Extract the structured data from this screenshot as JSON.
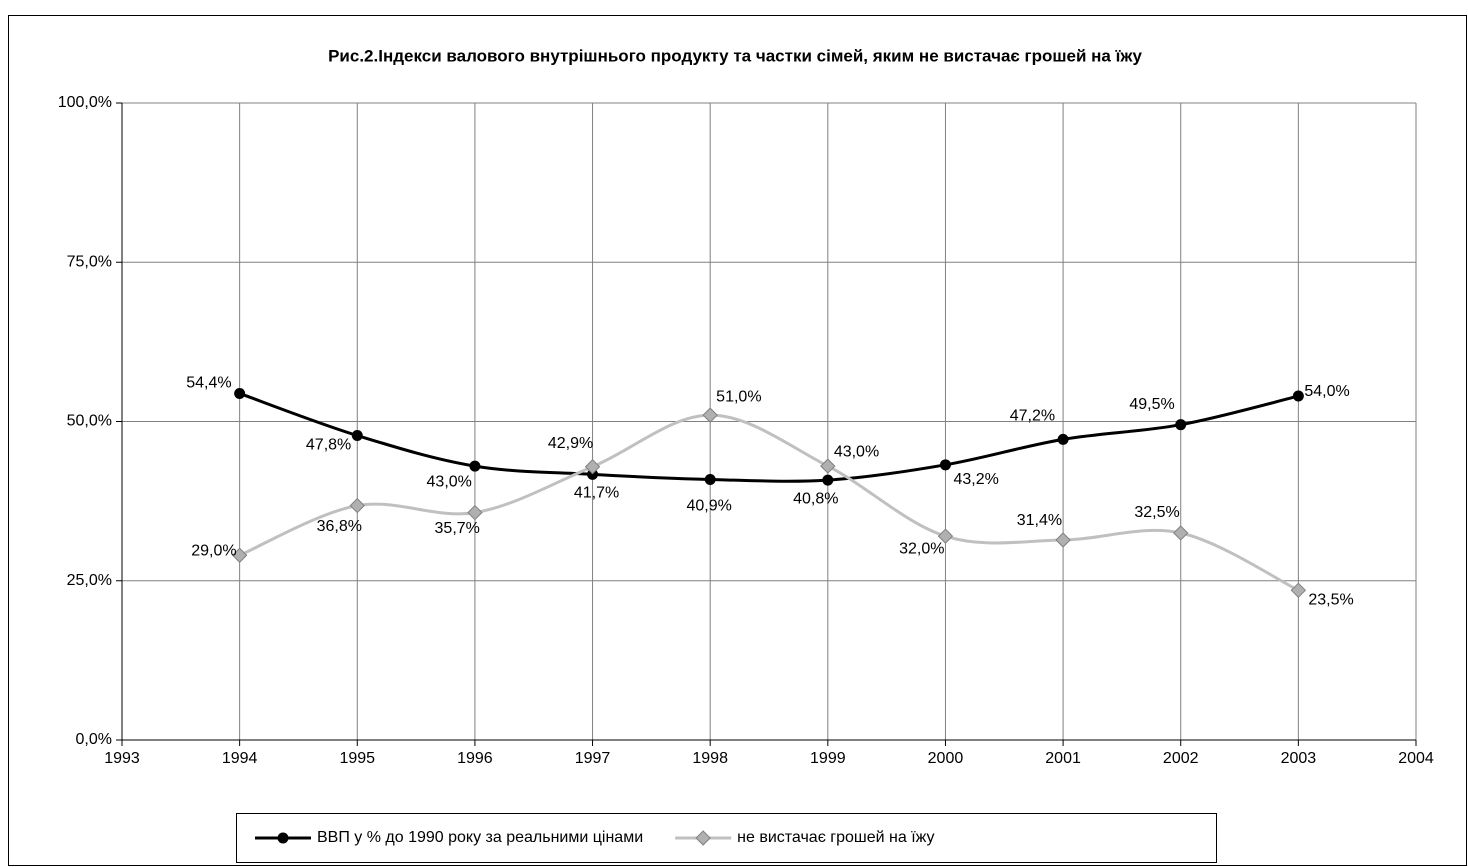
{
  "chart_data": {
    "type": "line",
    "title": "Рис.2.Індекси валового внутрішнього продукту та частки сімей, яким не вистачає грошей на їжу",
    "x": [
      1994,
      1995,
      1996,
      1997,
      1998,
      1999,
      2000,
      2001,
      2002,
      2003
    ],
    "series": [
      {
        "name": "ВВП у % до 1990 року за реальними цінами",
        "color": "#000000",
        "marker": "circle",
        "values": [
          54.4,
          47.8,
          43.0,
          41.7,
          40.9,
          40.8,
          43.2,
          47.2,
          49.5,
          54.0
        ],
        "value_labels": [
          "54,4%",
          "47,8%",
          "43,0%",
          "41,7%",
          "40,9%",
          "40,8%",
          "43,2%",
          "47,2%",
          "49,5%",
          "54,0%"
        ]
      },
      {
        "name": "не вистачає грошей на їжу",
        "color": "#c0c0c0",
        "marker": "diamond",
        "values": [
          29.0,
          36.8,
          35.7,
          42.9,
          51.0,
          43.0,
          32.0,
          31.4,
          32.5,
          23.5
        ],
        "value_labels": [
          "29,0%",
          "36,8%",
          "35,7%",
          "42,9%",
          "51,0%",
          "43,0%",
          "32,0%",
          "31,4%",
          "32,5%",
          "23,5%"
        ]
      }
    ],
    "xlim": [
      1993,
      2004
    ],
    "xticks": [
      1993,
      1994,
      1995,
      1996,
      1997,
      1998,
      1999,
      2000,
      2001,
      2002,
      2003,
      2004
    ],
    "ylim": [
      0,
      100
    ],
    "yticks": [
      {
        "value": 0,
        "label": "0,0%"
      },
      {
        "value": 25,
        "label": "25,0%"
      },
      {
        "value": 50,
        "label": "50,0%"
      },
      {
        "value": 75,
        "label": "75,0%"
      },
      {
        "value": 100,
        "label": "100,0%"
      }
    ],
    "grid": true,
    "legend": "bottom"
  }
}
